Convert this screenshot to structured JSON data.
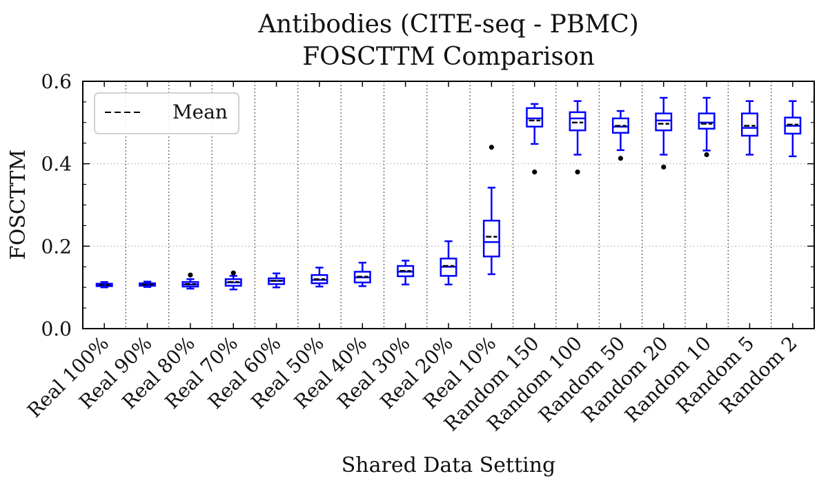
{
  "chart_data": {
    "type": "boxplot",
    "title": "Antibodies (CITE-seq - PBMC)",
    "subtitle": "FOSCTTM Comparison",
    "xlabel": "Shared Data Setting",
    "ylabel": "FOSCTTM",
    "ylim": [
      0,
      0.6
    ],
    "yticks": [
      "0.0",
      "0.2",
      "0.4",
      "0.6"
    ],
    "grid": {
      "x": "dotted",
      "y": "dotted"
    },
    "box_color": "#0000ff",
    "median_color": "#000000",
    "mean_color": "#000000",
    "legend": {
      "placement": "top-left",
      "entries": [
        {
          "label": "Mean",
          "style": "dashed"
        }
      ]
    },
    "categories": [
      "Real 100%",
      "Real 90%",
      "Real 80%",
      "Real 70%",
      "Real 60%",
      "Real 50%",
      "Real 40%",
      "Real 30%",
      "Real 20%",
      "Real 10%",
      "Random 150",
      "Random 100",
      "Random 50",
      "Random 20",
      "Random 10",
      "Random 5",
      "Random 2"
    ],
    "boxes": [
      {
        "whislo": 0.1,
        "q1": 0.103,
        "med": 0.106,
        "q3": 0.109,
        "whishi": 0.113,
        "mean": 0.106,
        "fliers": []
      },
      {
        "whislo": 0.101,
        "q1": 0.104,
        "med": 0.107,
        "q3": 0.11,
        "whishi": 0.114,
        "mean": 0.107,
        "fliers": []
      },
      {
        "whislo": 0.097,
        "q1": 0.102,
        "med": 0.107,
        "q3": 0.113,
        "whishi": 0.12,
        "mean": 0.108,
        "fliers": [
          0.13
        ]
      },
      {
        "whislo": 0.095,
        "q1": 0.104,
        "med": 0.112,
        "q3": 0.12,
        "whishi": 0.128,
        "mean": 0.113,
        "fliers": [
          0.135
        ]
      },
      {
        "whislo": 0.1,
        "q1": 0.108,
        "med": 0.116,
        "q3": 0.122,
        "whishi": 0.134,
        "mean": 0.116,
        "fliers": []
      },
      {
        "whislo": 0.102,
        "q1": 0.11,
        "med": 0.118,
        "q3": 0.13,
        "whishi": 0.148,
        "mean": 0.12,
        "fliers": []
      },
      {
        "whislo": 0.103,
        "q1": 0.112,
        "med": 0.124,
        "q3": 0.138,
        "whishi": 0.16,
        "mean": 0.126,
        "fliers": []
      },
      {
        "whislo": 0.107,
        "q1": 0.127,
        "med": 0.138,
        "q3": 0.152,
        "whishi": 0.165,
        "mean": 0.14,
        "fliers": []
      },
      {
        "whislo": 0.107,
        "q1": 0.128,
        "med": 0.15,
        "q3": 0.17,
        "whishi": 0.212,
        "mean": 0.152,
        "fliers": []
      },
      {
        "whislo": 0.132,
        "q1": 0.175,
        "med": 0.21,
        "q3": 0.262,
        "whishi": 0.342,
        "mean": 0.223,
        "fliers": [
          0.44
        ]
      },
      {
        "whislo": 0.448,
        "q1": 0.49,
        "med": 0.51,
        "q3": 0.535,
        "whishi": 0.545,
        "mean": 0.505,
        "fliers": [
          0.38
        ]
      },
      {
        "whislo": 0.422,
        "q1": 0.481,
        "med": 0.51,
        "q3": 0.525,
        "whishi": 0.552,
        "mean": 0.5,
        "fliers": [
          0.38
        ]
      },
      {
        "whislo": 0.433,
        "q1": 0.475,
        "med": 0.49,
        "q3": 0.51,
        "whishi": 0.528,
        "mean": 0.492,
        "fliers": [
          0.413
        ]
      },
      {
        "whislo": 0.422,
        "q1": 0.481,
        "med": 0.505,
        "q3": 0.522,
        "whishi": 0.56,
        "mean": 0.497,
        "fliers": [
          0.392
        ]
      },
      {
        "whislo": 0.432,
        "q1": 0.485,
        "med": 0.5,
        "q3": 0.522,
        "whishi": 0.56,
        "mean": 0.497,
        "fliers": [
          0.422
        ]
      },
      {
        "whislo": 0.422,
        "q1": 0.468,
        "med": 0.487,
        "q3": 0.522,
        "whishi": 0.552,
        "mean": 0.492,
        "fliers": []
      },
      {
        "whislo": 0.418,
        "q1": 0.473,
        "med": 0.492,
        "q3": 0.512,
        "whishi": 0.552,
        "mean": 0.495,
        "fliers": []
      }
    ]
  }
}
